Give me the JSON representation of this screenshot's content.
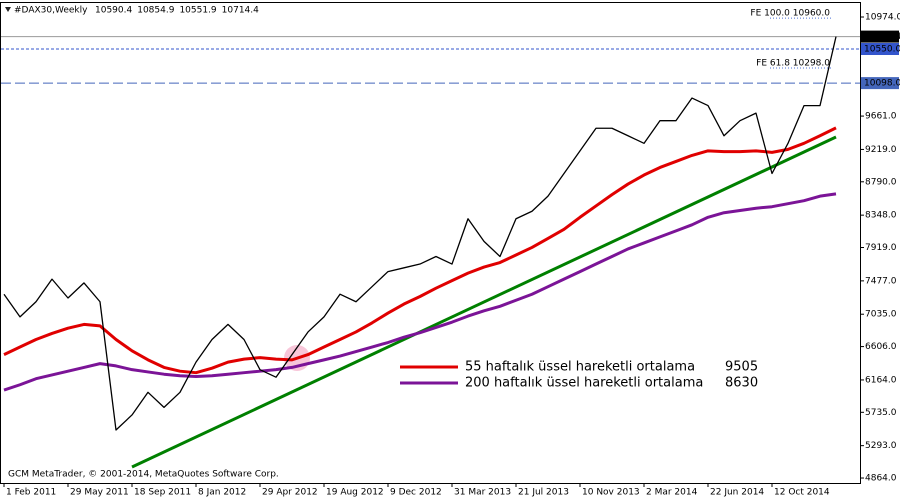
{
  "chart_data": {
    "type": "line",
    "title": "#DAX30,Weekly",
    "header_values": [
      10590.4,
      10854.9,
      10551.9,
      10714.4
    ],
    "footer": "GCM MetaTrader, © 2001-2014, MetaQuotes Software Corp.",
    "categories": [
      "1 Feb 2011",
      null,
      null,
      null,
      "29 May 2011",
      null,
      null,
      null,
      "18 Sep 2011",
      null,
      null,
      null,
      "8 Jan 2012",
      null,
      null,
      null,
      "29 Apr 2012",
      null,
      null,
      null,
      "19 Aug 2012",
      null,
      null,
      null,
      "9 Dec 2012",
      null,
      null,
      null,
      "31 Mar 2013",
      null,
      null,
      null,
      "21 Jul 2013",
      null,
      null,
      null,
      "10 Nov 2013",
      null,
      null,
      null,
      "2 Mar 2014",
      null,
      null,
      null,
      "22 Jun 2014",
      null,
      null,
      null,
      "12 Oct 2014",
      null,
      null,
      null,
      null
    ],
    "series": [
      {
        "name": "#DAX30",
        "color": "#000000",
        "width": 1.3,
        "values": [
          7300,
          7000,
          7200,
          7500,
          7250,
          7450,
          7200,
          5500,
          5700,
          6000,
          5800,
          6000,
          6400,
          6700,
          6900,
          6700,
          6300,
          6200,
          6500,
          6800,
          7000,
          7300,
          7200,
          7400,
          7600,
          7650,
          7700,
          7800,
          7700,
          8300,
          8000,
          7800,
          8300,
          8400,
          8600,
          8900,
          9200,
          9500,
          9500,
          9400,
          9300,
          9600,
          9600,
          9900,
          9800,
          9400,
          9600,
          9700,
          8900,
          9300,
          9800,
          9800,
          10714.4
        ]
      },
      {
        "name": "55 haftalık üssel hareketli ortalama",
        "color": "#e00000",
        "width": 3,
        "values": [
          6500,
          6600,
          6700,
          6780,
          6850,
          6900,
          6880,
          6700,
          6550,
          6430,
          6330,
          6280,
          6260,
          6320,
          6400,
          6440,
          6460,
          6440,
          6430,
          6500,
          6600,
          6700,
          6800,
          6920,
          7050,
          7170,
          7270,
          7380,
          7480,
          7580,
          7660,
          7720,
          7820,
          7920,
          8040,
          8160,
          8320,
          8470,
          8620,
          8760,
          8880,
          8980,
          9060,
          9140,
          9200,
          9190,
          9190,
          9200,
          9180,
          9220,
          9300,
          9400,
          9505
        ]
      },
      {
        "name": "200 haftalık üssel hareketli ortalama",
        "color": "#7b1497",
        "width": 3,
        "values": [
          6030,
          6100,
          6180,
          6230,
          6280,
          6330,
          6380,
          6350,
          6300,
          6270,
          6240,
          6220,
          6210,
          6220,
          6240,
          6260,
          6280,
          6300,
          6330,
          6380,
          6430,
          6480,
          6540,
          6600,
          6660,
          6730,
          6790,
          6860,
          6930,
          7010,
          7080,
          7140,
          7220,
          7300,
          7400,
          7500,
          7600,
          7700,
          7800,
          7900,
          7980,
          8060,
          8140,
          8220,
          8320,
          8380,
          8410,
          8440,
          8460,
          8500,
          8540,
          8600,
          8630
        ]
      }
    ],
    "trendline": {
      "color": "#008000",
      "x": [
        8,
        52
      ],
      "values": [
        5010,
        9384
      ]
    },
    "levels": [
      {
        "value": 10960,
        "label": "FE 100.0 10960.0",
        "color": "#4a6fd4",
        "style": "fib"
      },
      {
        "value": 10298,
        "label": "FE 61.8 10298.0",
        "color": "#4a6fd4",
        "style": "fib"
      },
      {
        "value": 10714.4,
        "label": "10714.4",
        "color": "#999999",
        "style": "current"
      },
      {
        "value": 10550,
        "label": "10550.0",
        "color": "#3355cc",
        "style": "tag"
      },
      {
        "value": 10098,
        "label": "10098.0",
        "color": "#4466bb",
        "style": "tagdash"
      }
    ],
    "ylim": [
      4798,
      11173
    ],
    "yticks": [
      {
        "value": 4864,
        "label": "4864.0"
      },
      {
        "value": 5293,
        "label": "5293.0"
      },
      {
        "value": 5735,
        "label": "5735.0"
      },
      {
        "value": 6164,
        "label": "6164.0"
      },
      {
        "value": 6606,
        "label": "6606.0"
      },
      {
        "value": 7035,
        "label": "7035.0"
      },
      {
        "value": 7477,
        "label": "7477.0"
      },
      {
        "value": 7919,
        "label": "7919.0"
      },
      {
        "value": 8348,
        "label": "8348.0"
      },
      {
        "value": 8790,
        "label": "8790.0"
      },
      {
        "value": 9219,
        "label": "9219.0"
      },
      {
        "value": 9661,
        "label": "9661.0"
      },
      {
        "value": 10974,
        "label": "10974.0"
      }
    ]
  }
}
